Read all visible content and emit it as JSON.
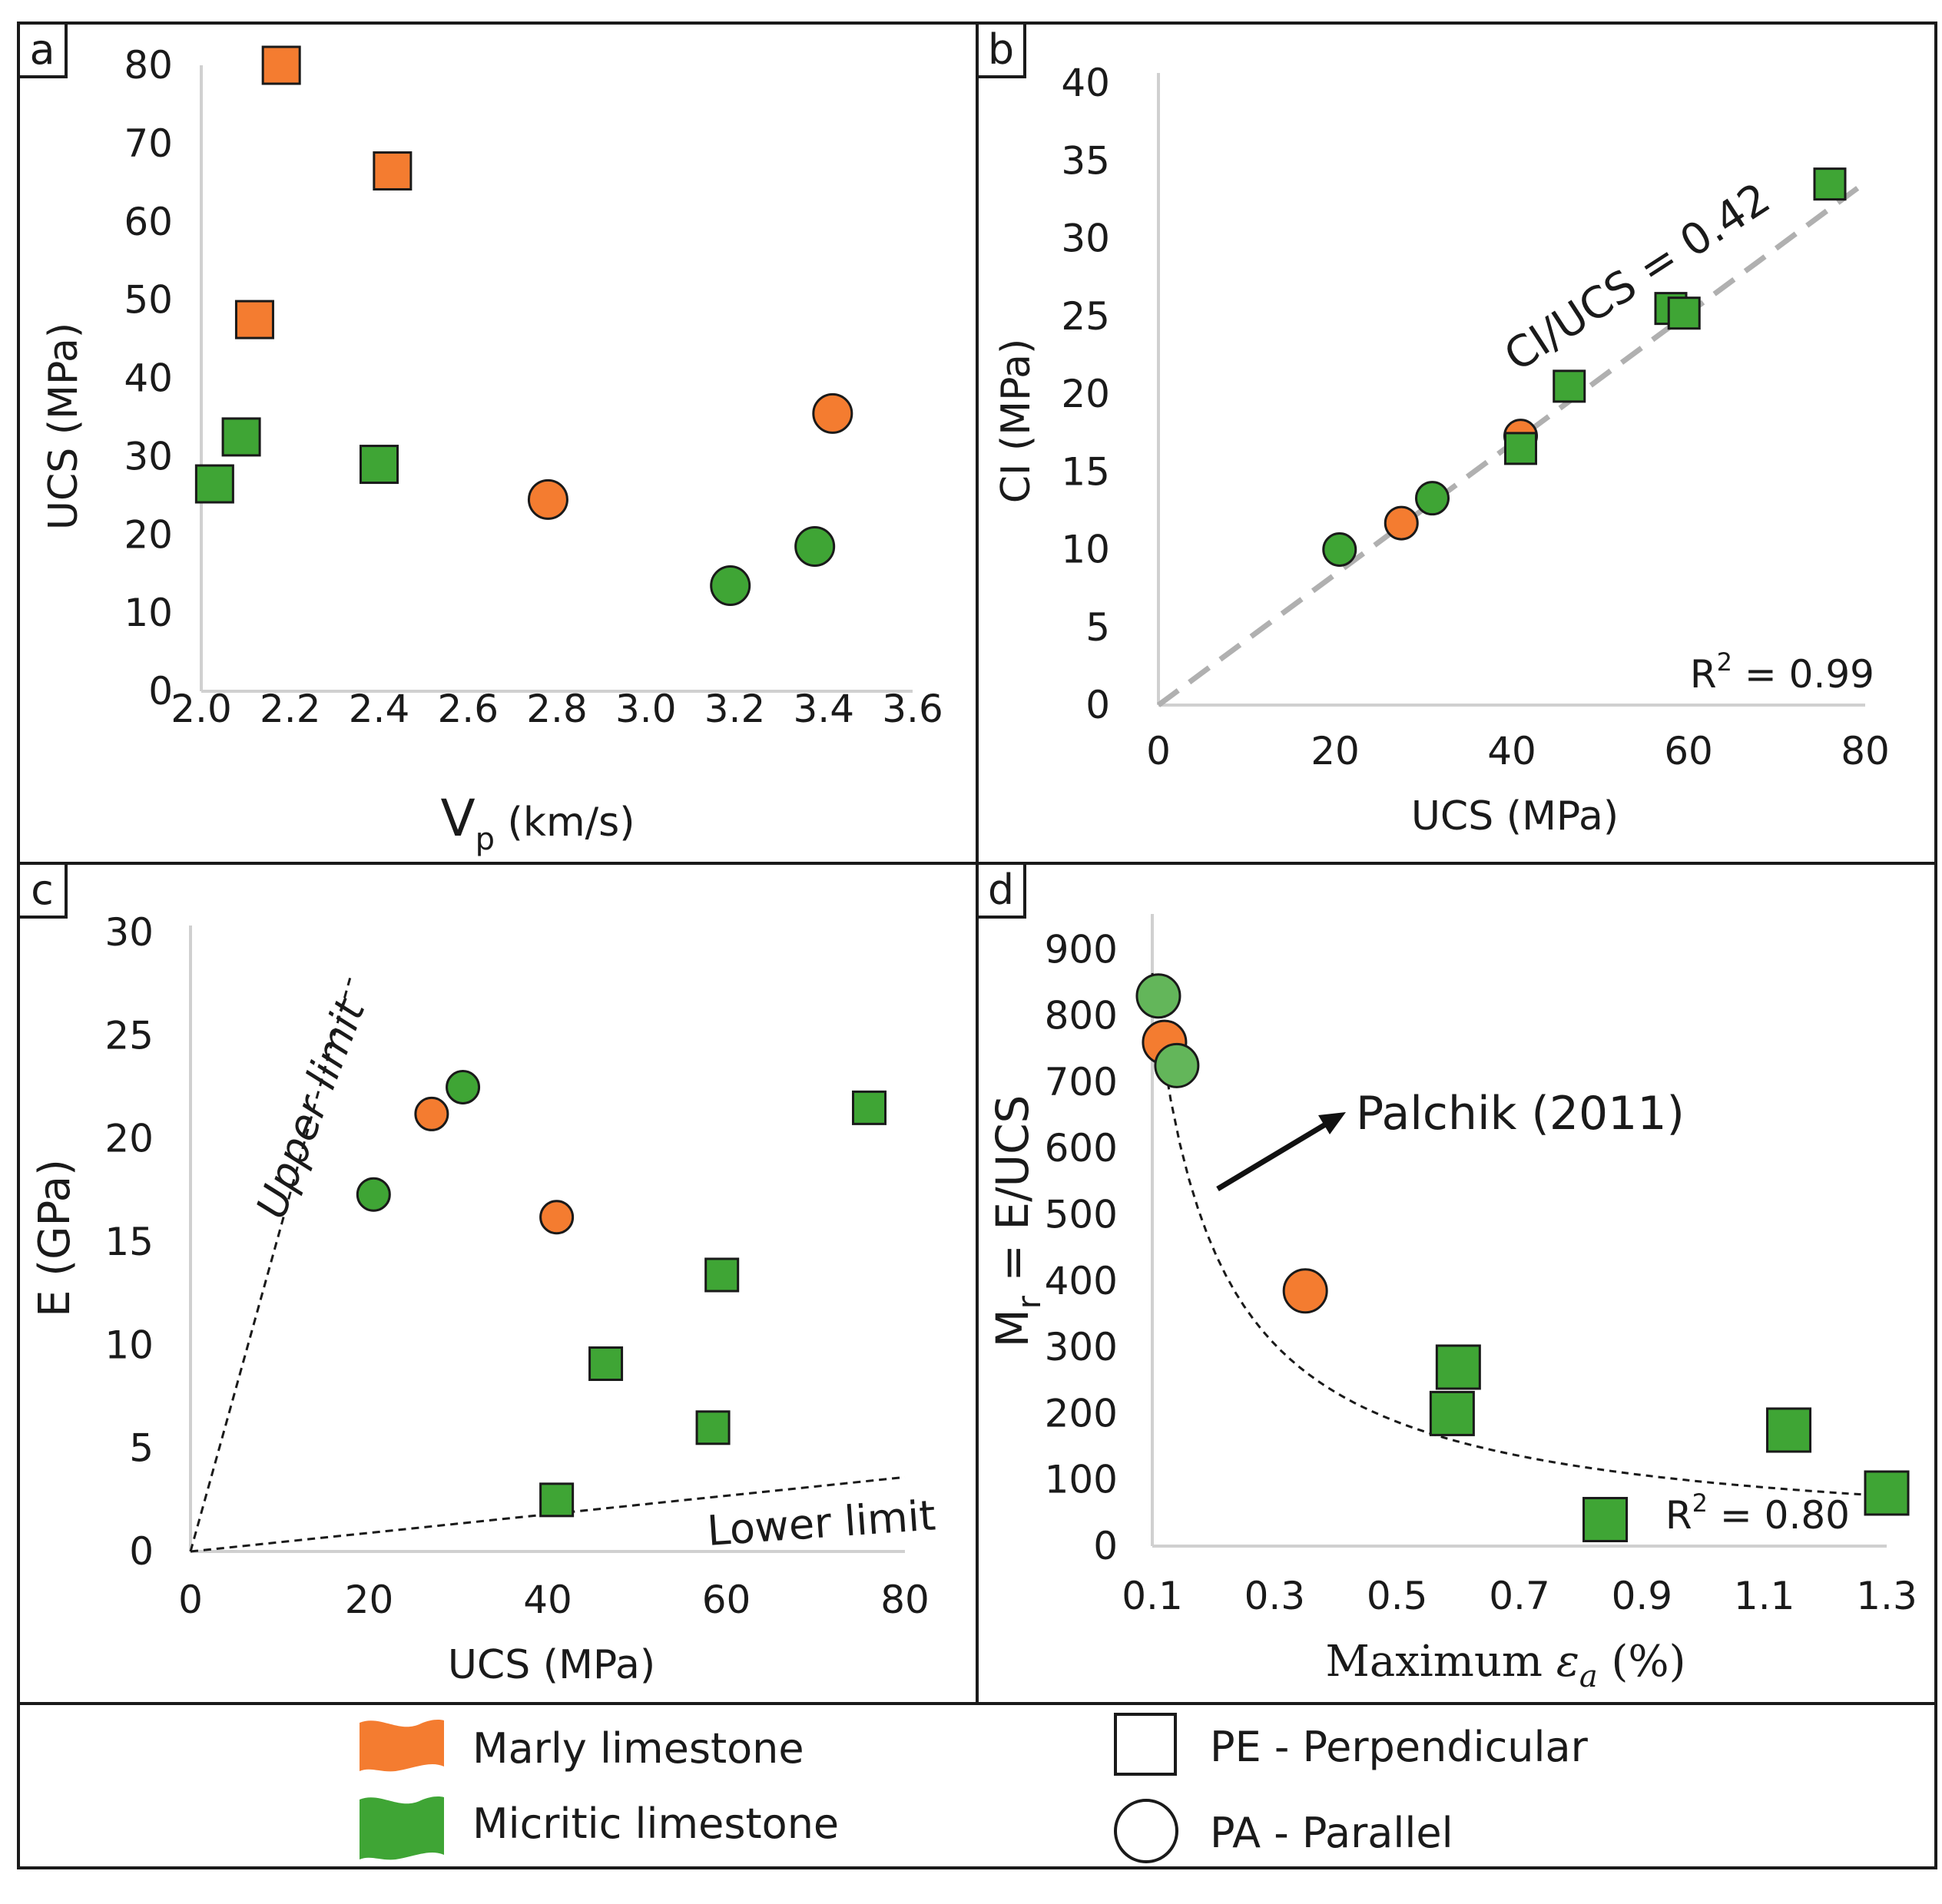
{
  "colors": {
    "marly": "#F47C30",
    "micritic": "#3FA535",
    "micritic_light": "#63B65A",
    "axis": "#d0d0d0",
    "frame": "#1a1a1a",
    "fit_gray": "#b0b0b0"
  },
  "chart_data": [
    {
      "panel": "a",
      "type": "scatter",
      "xlabel_main": "V",
      "xlabel_sub": "p",
      "xlabel_rest": " (km/s)",
      "ylabel": "UCS (MPa)",
      "xlim": [
        2.0,
        3.6
      ],
      "ylim": [
        0,
        80
      ],
      "xticks": [
        "2.0",
        "2.2",
        "2.4",
        "2.6",
        "2.8",
        "3.0",
        "3.2",
        "3.4",
        "3.6"
      ],
      "yticks": [
        "0",
        "10",
        "20",
        "30",
        "40",
        "50",
        "60",
        "70",
        "80"
      ],
      "points": [
        {
          "x": 2.18,
          "y": 80,
          "lithology": "marly",
          "orientation": "PE"
        },
        {
          "x": 2.43,
          "y": 66.5,
          "lithology": "marly",
          "orientation": "PE"
        },
        {
          "x": 2.12,
          "y": 47.5,
          "lithology": "marly",
          "orientation": "PE"
        },
        {
          "x": 2.09,
          "y": 32.5,
          "lithology": "micritic",
          "orientation": "PE"
        },
        {
          "x": 2.03,
          "y": 26.5,
          "lithology": "micritic",
          "orientation": "PE"
        },
        {
          "x": 2.4,
          "y": 29,
          "lithology": "micritic",
          "orientation": "PE"
        },
        {
          "x": 2.78,
          "y": 24.5,
          "lithology": "marly",
          "orientation": "PA"
        },
        {
          "x": 3.42,
          "y": 35.5,
          "lithology": "marly",
          "orientation": "PA"
        },
        {
          "x": 3.19,
          "y": 13.5,
          "lithology": "micritic",
          "orientation": "PA"
        },
        {
          "x": 3.38,
          "y": 18.5,
          "lithology": "micritic",
          "orientation": "PA"
        }
      ]
    },
    {
      "panel": "b",
      "type": "scatter",
      "xlabel": "UCS (MPa)",
      "ylabel": "CI (MPa)",
      "xlim": [
        0,
        80
      ],
      "ylim": [
        0,
        40
      ],
      "xticks": [
        "0",
        "20",
        "40",
        "60",
        "80"
      ],
      "yticks": [
        "0",
        "5",
        "10",
        "15",
        "20",
        "25",
        "30",
        "35",
        "40"
      ],
      "fit": {
        "slope": 0.42,
        "x_range": [
          0,
          80
        ]
      },
      "annotation": "CI/UCS = 0.42",
      "r2_base": "R",
      "r2_exp": "2",
      "r2_value": " = 0.99",
      "points": [
        {
          "x": 76,
          "y": 33.5,
          "lithology": "micritic",
          "orientation": "PE"
        },
        {
          "x": 58,
          "y": 25.5,
          "lithology": "micritic",
          "orientation": "PE"
        },
        {
          "x": 59.5,
          "y": 25.2,
          "lithology": "micritic",
          "orientation": "PE"
        },
        {
          "x": 46.5,
          "y": 20.5,
          "lithology": "micritic",
          "orientation": "PE"
        },
        {
          "x": 41,
          "y": 17.3,
          "lithology": "marly",
          "orientation": "PA"
        },
        {
          "x": 41,
          "y": 16.5,
          "lithology": "micritic",
          "orientation": "PE"
        },
        {
          "x": 31,
          "y": 13.3,
          "lithology": "micritic",
          "orientation": "PA"
        },
        {
          "x": 27.5,
          "y": 11.7,
          "lithology": "marly",
          "orientation": "PA"
        },
        {
          "x": 20.5,
          "y": 10,
          "lithology": "micritic",
          "orientation": "PA"
        }
      ]
    },
    {
      "panel": "c",
      "type": "scatter",
      "xlabel": "UCS (MPa)",
      "ylabel": "E (GPa)",
      "xlim": [
        0,
        80
      ],
      "ylim": [
        0,
        30
      ],
      "xticks": [
        "0",
        "20",
        "40",
        "60",
        "80"
      ],
      "yticks": [
        "0",
        "5",
        "10",
        "15",
        "20",
        "25",
        "30"
      ],
      "upper_limit": {
        "label": "Upper limit",
        "end": [
          18,
          28
        ]
      },
      "lower_limit": {
        "label": "Lower limit",
        "end": [
          80,
          3.6
        ]
      },
      "points": [
        {
          "x": 30.5,
          "y": 22.5,
          "lithology": "micritic",
          "orientation": "PA"
        },
        {
          "x": 27,
          "y": 21.2,
          "lithology": "marly",
          "orientation": "PA"
        },
        {
          "x": 20.5,
          "y": 17.3,
          "lithology": "micritic",
          "orientation": "PA"
        },
        {
          "x": 41,
          "y": 16.2,
          "lithology": "marly",
          "orientation": "PA"
        },
        {
          "x": 76,
          "y": 21.5,
          "lithology": "micritic",
          "orientation": "PE"
        },
        {
          "x": 59.5,
          "y": 13.4,
          "lithology": "micritic",
          "orientation": "PE"
        },
        {
          "x": 46.5,
          "y": 9.1,
          "lithology": "micritic",
          "orientation": "PE"
        },
        {
          "x": 58.5,
          "y": 6.0,
          "lithology": "micritic",
          "orientation": "PE"
        },
        {
          "x": 41,
          "y": 2.5,
          "lithology": "micritic",
          "orientation": "PE"
        }
      ]
    },
    {
      "panel": "d",
      "type": "scatter",
      "xlabel_main": "Maximum ",
      "xlabel_eps": "ε",
      "xlabel_sub": "a",
      "xlabel_rest": " (%)",
      "ylabel_main": "M",
      "ylabel_sub": "r",
      "ylabel_rest": " = E/UCS",
      "xlim": [
        0.1,
        1.3
      ],
      "ylim": [
        0,
        1000
      ],
      "xticks": [
        "0.1",
        "0.3",
        "0.5",
        "0.7",
        "0.9",
        "1.1",
        "1.3"
      ],
      "yticks": [
        "0",
        "100",
        "200",
        "300",
        "400",
        "500",
        "600",
        "700",
        "800",
        "900"
      ],
      "fit": {
        "type": "power",
        "a": 97,
        "b": -0.95,
        "x_range": [
          0.1,
          1.3
        ],
        "label": "Palchik (2011)"
      },
      "r2_base": "R",
      "r2_exp": "2",
      "r2_value": " = 0.80",
      "points": [
        {
          "x": 0.11,
          "y": 830,
          "lithology": "micritic",
          "orientation": "PA"
        },
        {
          "x": 0.12,
          "y": 760,
          "lithology": "marly",
          "orientation": "PA"
        },
        {
          "x": 0.14,
          "y": 725,
          "lithology": "micritic",
          "orientation": "PA"
        },
        {
          "x": 0.35,
          "y": 385,
          "lithology": "marly",
          "orientation": "PA"
        },
        {
          "x": 0.6,
          "y": 270,
          "lithology": "micritic",
          "orientation": "PE"
        },
        {
          "x": 0.59,
          "y": 200,
          "lithology": "micritic",
          "orientation": "PE"
        },
        {
          "x": 1.14,
          "y": 175,
          "lithology": "micritic",
          "orientation": "PE"
        },
        {
          "x": 1.3,
          "y": 80,
          "lithology": "micritic",
          "orientation": "PE"
        },
        {
          "x": 0.84,
          "y": 40,
          "lithology": "micritic",
          "orientation": "PE"
        }
      ]
    }
  ],
  "legend": {
    "marly": "Marly limestone",
    "micritic": "Micritic limestone",
    "pe": "PE - Perpendicular",
    "pa": "PA - Parallel"
  }
}
